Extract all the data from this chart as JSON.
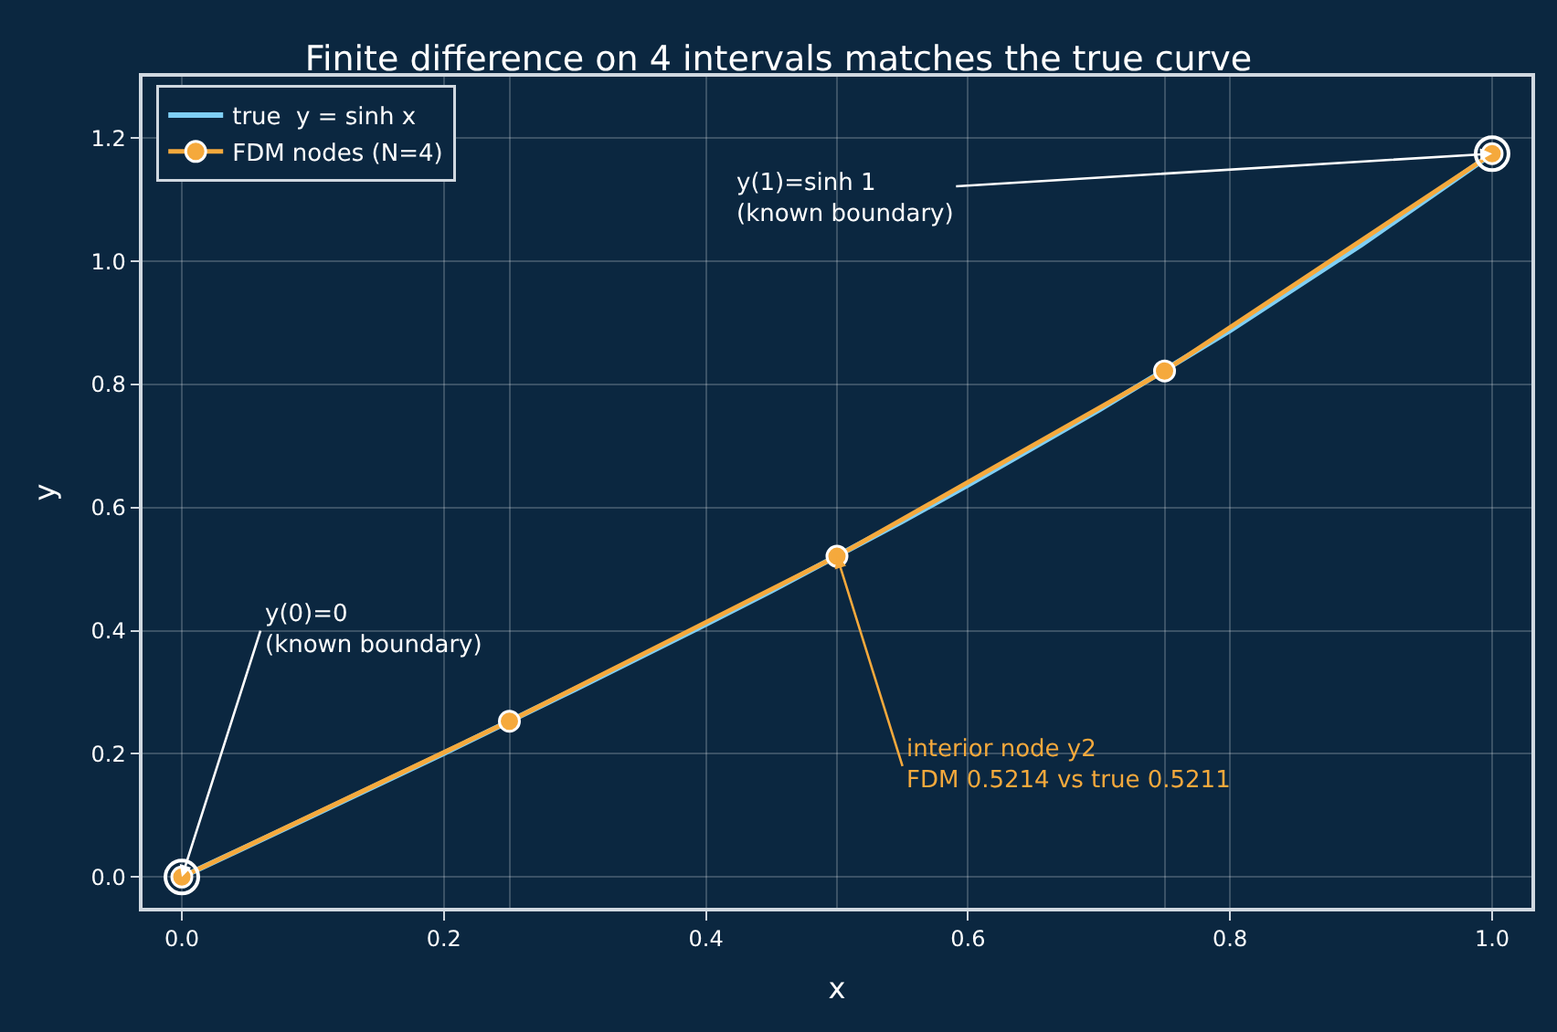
{
  "chart_data": {
    "type": "line",
    "title": "Finite difference on 4 intervals matches the true curve",
    "xlabel": "x",
    "ylabel": "y",
    "series": [
      {
        "name": "true  y = sinh x",
        "color": "#7fcff5",
        "marker": "none",
        "x": [
          0,
          0.1,
          0.2,
          0.3,
          0.4,
          0.45,
          0.55,
          0.6,
          0.7,
          0.8,
          0.9,
          1.0
        ],
        "values": [
          0,
          0.1,
          0.201,
          0.305,
          0.411,
          0.465,
          0.578,
          0.637,
          0.759,
          0.888,
          1.027,
          1.175
        ]
      },
      {
        "name": "FDM nodes (N=4)",
        "color": "#f5a93c",
        "marker": "circle",
        "x": [
          0,
          0.25,
          0.5,
          0.75,
          1.0
        ],
        "values": [
          0,
          0.253,
          0.521,
          0.822,
          1.175
        ]
      },
      {
        "color": "#ffffff",
        "type": "scatter",
        "x": [
          0,
          1.0
        ],
        "values": [
          0,
          1.175
        ]
      }
    ],
    "annotations": [
      {
        "text": "y(0)=0\n(known boundary)",
        "x": 0,
        "y": 0
      },
      {
        "text": "y(1)=sinh 1\n(known boundary)",
        "x": 1.0,
        "y": 1.175
      },
      {
        "text": "interior node y2\nFDM 0.5214 vs true 0.5211",
        "x": 0.5,
        "y": 0.521
      }
    ],
    "xlim": [
      -0.03,
      1.03
    ],
    "xticks": [
      {
        "value": 0,
        "label": "0.0"
      },
      0.2,
      0.4,
      0.6,
      0.8,
      {
        "value": 1,
        "label": "1.0"
      }
    ],
    "ylim": [
      -0.05,
      1.3
    ],
    "yticks": [
      {
        "value": 0,
        "label": "0.0"
      },
      0.2,
      0.4,
      0.6,
      0.8,
      {
        "value": 1,
        "label": "1.0"
      },
      1.2
    ],
    "grid": true,
    "legend": "top left"
  }
}
